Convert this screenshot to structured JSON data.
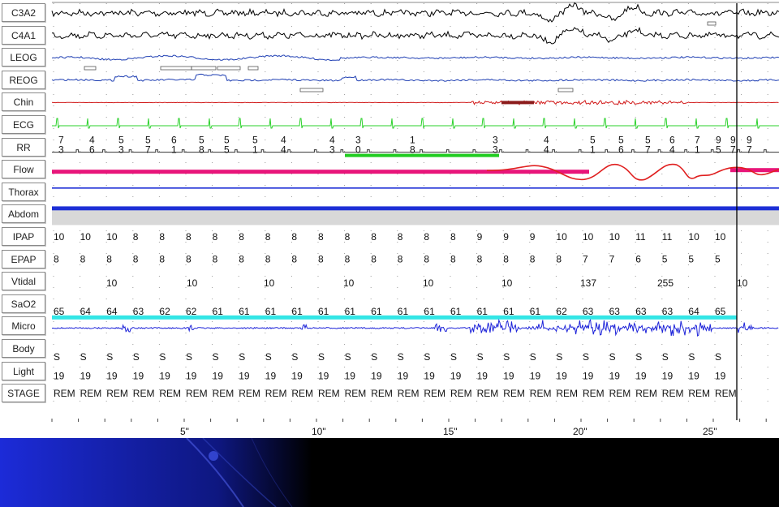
{
  "channels": [
    "C3A2",
    "C4A1",
    "LEOG",
    "REOG",
    "Chin",
    "ECG",
    "RR",
    "Flow",
    "Thorax",
    "Abdom",
    "IPAP",
    "EPAP",
    "Vtidal",
    "SaO2",
    "Micro",
    "Body",
    "Light",
    "STAGE"
  ],
  "rr_values": [
    [
      "7",
      "3"
    ],
    [
      "4",
      "6"
    ],
    [
      "5",
      "3"
    ],
    [
      "5",
      "7"
    ],
    [
      "6",
      "1"
    ],
    [
      "5",
      "8"
    ],
    [
      "5",
      "5"
    ],
    [
      "5",
      "1"
    ],
    [
      "4",
      "4"
    ],
    [
      "4",
      "3"
    ],
    [
      "3",
      "0"
    ],
    [
      "1",
      "8"
    ],
    [
      "3",
      "3"
    ],
    [
      "4",
      "4"
    ],
    [
      "5",
      "1"
    ],
    [
      "5",
      "6"
    ],
    [
      "5",
      "7"
    ],
    [
      "6",
      "4"
    ],
    [
      "7",
      "1"
    ],
    [
      "9",
      "5"
    ],
    [
      "9",
      "7"
    ],
    [
      "9",
      "7"
    ]
  ],
  "ipap": [
    "10",
    "10",
    "10",
    "8",
    "8",
    "8",
    "8",
    "8",
    "8",
    "8",
    "8",
    "8",
    "8",
    "8",
    "8",
    "8",
    "9",
    "9",
    "9",
    "10",
    "10",
    "10",
    "11",
    "11",
    "10",
    "10"
  ],
  "epap": [
    "8",
    "8",
    "8",
    "8",
    "8",
    "8",
    "8",
    "8",
    "8",
    "8",
    "8",
    "8",
    "8",
    "8",
    "8",
    "8",
    "8",
    "8",
    "8",
    "8",
    "7",
    "7",
    "6",
    "5",
    "5",
    "5"
  ],
  "vtidal": [
    "10",
    "10",
    "10",
    "10",
    "10",
    "10",
    "137",
    "255",
    "10"
  ],
  "sao2": [
    "65",
    "64",
    "64",
    "63",
    "62",
    "62",
    "61",
    "61",
    "61",
    "61",
    "61",
    "61",
    "61",
    "61",
    "61",
    "61",
    "61",
    "61",
    "61",
    "62",
    "63",
    "63",
    "63",
    "63",
    "64",
    "65"
  ],
  "body": [
    "S",
    "S",
    "S",
    "S",
    "S",
    "S",
    "S",
    "S",
    "S",
    "S",
    "S",
    "S",
    "S",
    "S",
    "S",
    "S",
    "S",
    "S",
    "S",
    "S",
    "S",
    "S",
    "S",
    "S",
    "S",
    "S"
  ],
  "light": [
    "19",
    "19",
    "19",
    "19",
    "19",
    "19",
    "19",
    "19",
    "19",
    "19",
    "19",
    "19",
    "19",
    "19",
    "19",
    "19",
    "19",
    "19",
    "19",
    "19",
    "19",
    "19",
    "19",
    "19",
    "19",
    "19"
  ],
  "stage": [
    "REM",
    "REM",
    "REM",
    "REM",
    "REM",
    "REM",
    "REM",
    "REM",
    "REM",
    "REM",
    "REM",
    "REM",
    "REM",
    "REM",
    "REM",
    "REM",
    "REM",
    "REM",
    "REM",
    "REM",
    "REM",
    "REM",
    "REM",
    "REM",
    "REM",
    "REM"
  ],
  "time_ticks": [
    "5\"",
    "10\"",
    "15\"",
    "20\"",
    "25\""
  ],
  "colors": {
    "eeg": "#000000",
    "eog": "#1f3fb3",
    "chin": "#d11a1a",
    "ecg": "#2bd12b",
    "flow": "#e8157a",
    "flow_line": "#e02020",
    "thorax": "#1d2fd6",
    "abdom_band": "#d8d8d8",
    "sao2": "#33e6e6",
    "micro": "#1e24d9",
    "rr_bar": "#20cc20"
  }
}
